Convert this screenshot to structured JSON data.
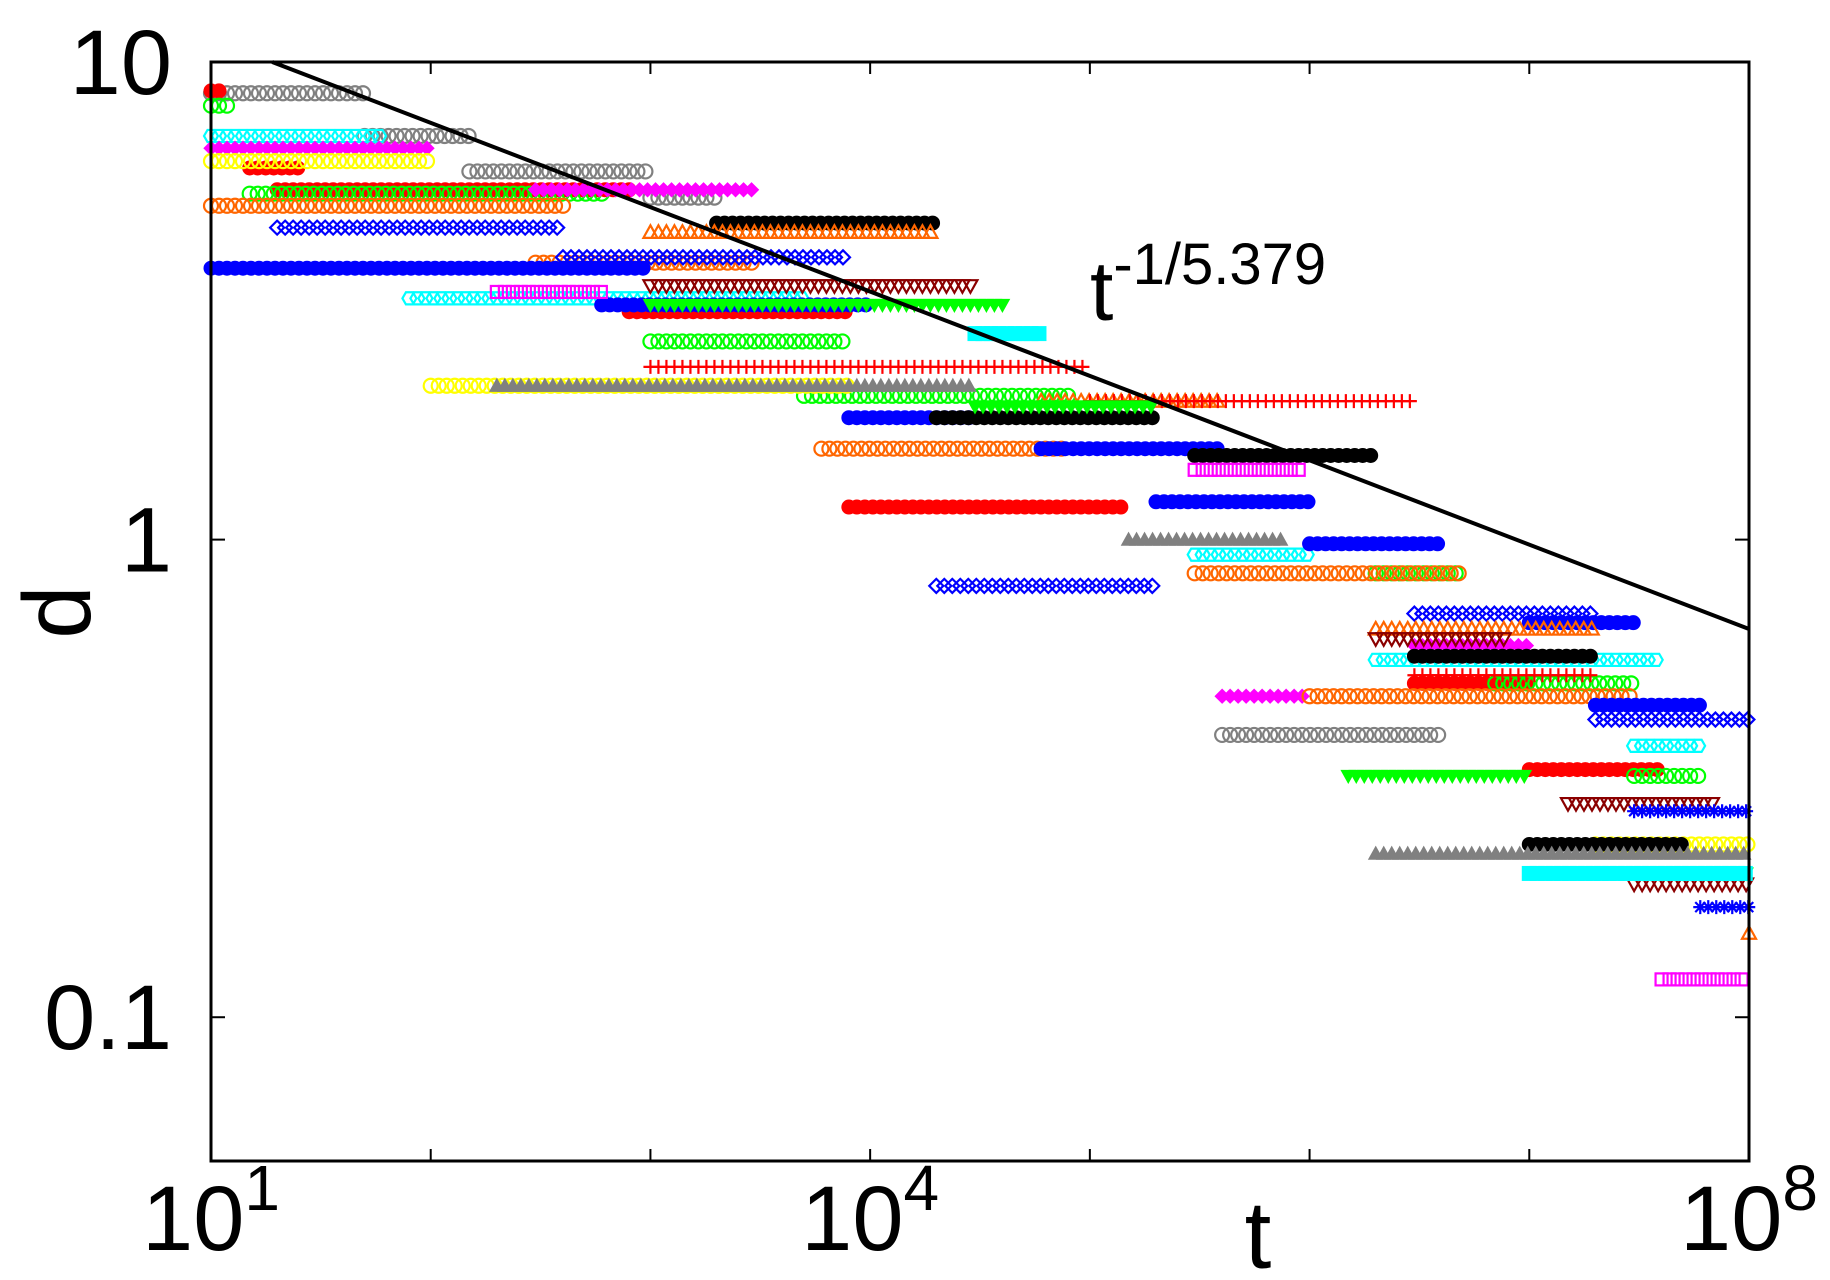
{
  "chart_data": {
    "type": "scatter",
    "title": "",
    "xlabel": "t",
    "ylabel": "d",
    "xscale": "log",
    "yscale": "log",
    "xlim": [
      10,
      100000000
    ],
    "ylim": [
      0.05,
      10
    ],
    "grid": false,
    "legend": "none",
    "x_ticks": [
      {
        "value": 10,
        "base": "10",
        "exp": "1"
      },
      {
        "value": 10000,
        "base": "10",
        "exp": "4"
      },
      {
        "value": 100000000,
        "base": "10",
        "exp": "8"
      }
    ],
    "y_ticks": [
      {
        "value": 10,
        "label": "10"
      },
      {
        "value": 1,
        "label": "1"
      },
      {
        "value": 0.1,
        "label": "0.1"
      }
    ],
    "guide_line": {
      "label_base": "t",
      "label_exp": "-1/5.379",
      "exponent": -0.1859,
      "points": [
        [
          19,
          10
        ],
        [
          100000000,
          0.65
        ]
      ]
    },
    "series": [
      {
        "color": "#808080",
        "marker": "circle-open",
        "segments": [
          [
            10,
            50,
            8.6
          ],
          [
            50,
            150,
            7.0
          ],
          [
            150,
            1000,
            5.9
          ],
          [
            1000,
            2000,
            5.2
          ],
          [
            400000,
            4000000,
            0.39
          ]
        ]
      },
      {
        "color": "#ff0000",
        "marker": "circle-filled",
        "segments": [
          [
            10,
            11,
            8.7
          ],
          [
            15,
            25,
            6.0
          ],
          [
            20,
            800,
            5.4
          ],
          [
            800,
            8000,
            3.0
          ],
          [
            8000,
            150000,
            1.17
          ],
          [
            3000000,
            10000000,
            0.5
          ],
          [
            10000000,
            40000000,
            0.33
          ]
        ]
      },
      {
        "color": "#00ff00",
        "marker": "circle-open",
        "segments": [
          [
            10,
            12,
            8.1
          ],
          [
            15,
            600,
            5.3
          ],
          [
            1000,
            8000,
            2.6
          ],
          [
            5000,
            80000,
            2.0
          ],
          [
            2000000,
            5000000,
            0.85
          ],
          [
            7000000,
            30000000,
            0.5
          ],
          [
            30000000,
            60000000,
            0.32
          ]
        ]
      },
      {
        "color": "#00ffff",
        "marker": "hexagon-open",
        "segments": [
          [
            10,
            60,
            7.0
          ],
          [
            80,
            5000,
            3.2
          ],
          [
            300000,
            1000000,
            0.93
          ],
          [
            2000000,
            40000000,
            0.56
          ],
          [
            30000000,
            60000000,
            0.37
          ]
        ]
      },
      {
        "color": "#ff00ff",
        "marker": "diamond-filled",
        "segments": [
          [
            10,
            100,
            6.6
          ],
          [
            300,
            3000,
            5.4
          ],
          [
            400000,
            1000000,
            0.47
          ],
          [
            3000000,
            10000000,
            0.6
          ]
        ]
      },
      {
        "color": "#ffff00",
        "marker": "circle-open",
        "segments": [
          [
            10,
            100,
            6.2
          ],
          [
            100,
            8000,
            2.1
          ],
          [
            20000000,
            100000000,
            0.23
          ]
        ]
      },
      {
        "color": "#ff6600",
        "marker": "circle-open",
        "segments": [
          [
            10,
            400,
            5.0
          ],
          [
            300,
            3000,
            3.8
          ],
          [
            6000,
            80000,
            1.55
          ],
          [
            300000,
            5000000,
            0.85
          ],
          [
            1000000,
            30000000,
            0.47
          ]
        ]
      },
      {
        "color": "#0000ff",
        "marker": "circle-filled",
        "segments": [
          [
            10,
            1000,
            3.7
          ],
          [
            600,
            10000,
            3.1
          ],
          [
            8000,
            30000,
            1.8
          ],
          [
            60000,
            400000,
            1.55
          ],
          [
            200000,
            1000000,
            1.2
          ],
          [
            1000000,
            4000000,
            0.98
          ],
          [
            10000000,
            30000000,
            0.67
          ],
          [
            20000000,
            60000000,
            0.45
          ]
        ]
      },
      {
        "color": "#000000",
        "marker": "circle-filled",
        "segments": [
          [
            2000,
            20000,
            4.6
          ],
          [
            20000,
            200000,
            1.8
          ],
          [
            300000,
            2000000,
            1.5
          ],
          [
            3000000,
            20000000,
            0.57
          ],
          [
            10000000,
            50000000,
            0.23
          ]
        ]
      },
      {
        "color": "#0000ff",
        "marker": "diamond-open",
        "segments": [
          [
            20,
            400,
            4.5
          ],
          [
            400,
            8000,
            3.9
          ],
          [
            20000,
            200000,
            0.8
          ],
          [
            3000000,
            20000000,
            0.7
          ],
          [
            20000000,
            100000000,
            0.42
          ]
        ]
      },
      {
        "color": "#ff6600",
        "marker": "triangle-up-open",
        "segments": [
          [
            1000,
            20000,
            4.4
          ],
          [
            60000,
            400000,
            1.95
          ],
          [
            2000000,
            20000000,
            0.65
          ],
          [
            100000000,
            100000000,
            0.15
          ]
        ]
      },
      {
        "color": "#808080",
        "marker": "triangle-up-filled",
        "segments": [
          [
            200,
            30000,
            2.1
          ],
          [
            150000,
            800000,
            1.0
          ],
          [
            2000000,
            100000000,
            0.22
          ]
        ]
      },
      {
        "color": "#ff0000",
        "marker": "plus",
        "segments": [
          [
            1000,
            100000,
            2.3
          ],
          [
            100000,
            3000000,
            1.95
          ],
          [
            3000000,
            20000000,
            0.52
          ]
        ]
      },
      {
        "color": "#00ff00",
        "marker": "triangle-down-filled",
        "segments": [
          [
            1000,
            40000,
            3.1
          ],
          [
            30000,
            200000,
            1.9
          ],
          [
            1500000,
            10000000,
            0.32
          ],
          [
            30000000,
            100000000,
            0.2
          ]
        ]
      },
      {
        "color": "#8b0000",
        "marker": "triangle-down-open",
        "segments": [
          [
            1000,
            30000,
            3.4
          ],
          [
            2000000,
            8000000,
            0.62
          ],
          [
            15000000,
            70000000,
            0.28
          ],
          [
            30000000,
            100000000,
            0.19
          ]
        ]
      },
      {
        "color": "#00ffff",
        "marker": "square-filled",
        "segments": [
          [
            30000,
            60000,
            2.7
          ],
          [
            10000000,
            100000000,
            0.2
          ]
        ]
      },
      {
        "color": "#ff00ff",
        "marker": "square-open",
        "segments": [
          [
            200,
            600,
            3.3
          ],
          [
            300000,
            900000,
            1.4
          ],
          [
            40000000,
            100000000,
            0.12
          ]
        ]
      },
      {
        "color": "#0000ff",
        "marker": "asterisk",
        "segments": [
          [
            30000000,
            100000000,
            0.27
          ],
          [
            60000000,
            100000000,
            0.17
          ]
        ]
      }
    ]
  }
}
